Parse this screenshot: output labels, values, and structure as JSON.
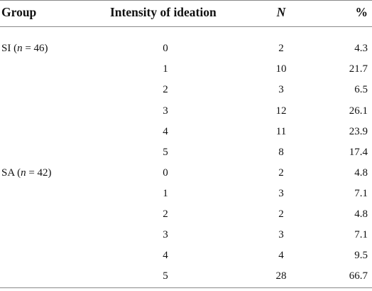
{
  "table": {
    "headers": {
      "group": "Group",
      "intensity": "Intensity of ideation",
      "n": "N",
      "percent": "%"
    },
    "groups": [
      {
        "prefix": "SI (",
        "n_symbol": "n",
        "suffix": " = 46)",
        "rows": [
          {
            "intensity": "0",
            "n": "2",
            "percent": "4.3"
          },
          {
            "intensity": "1",
            "n": "10",
            "percent": "21.7"
          },
          {
            "intensity": "2",
            "n": "3",
            "percent": "6.5"
          },
          {
            "intensity": "3",
            "n": "12",
            "percent": "26.1"
          },
          {
            "intensity": "4",
            "n": "11",
            "percent": "23.9"
          },
          {
            "intensity": "5",
            "n": "8",
            "percent": "17.4"
          }
        ]
      },
      {
        "prefix": "SA (",
        "n_symbol": "n",
        "suffix": " = 42)",
        "rows": [
          {
            "intensity": "0",
            "n": "2",
            "percent": "4.8"
          },
          {
            "intensity": "1",
            "n": "3",
            "percent": "7.1"
          },
          {
            "intensity": "2",
            "n": "2",
            "percent": "4.8"
          },
          {
            "intensity": "3",
            "n": "3",
            "percent": "7.1"
          },
          {
            "intensity": "4",
            "n": "4",
            "percent": "9.5"
          },
          {
            "intensity": "5",
            "n": "28",
            "percent": "66.7"
          }
        ]
      }
    ]
  }
}
